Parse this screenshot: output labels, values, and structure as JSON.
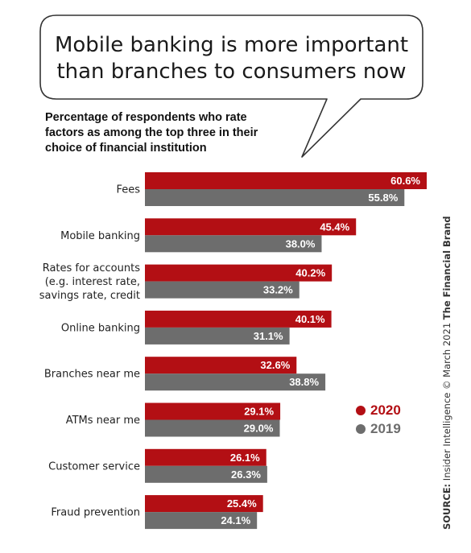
{
  "headline": {
    "line1": "Mobile banking is more important",
    "line2": "than branches to consumers now"
  },
  "subtitle": {
    "line1": "Percentage of respondents who rate",
    "line2": "factors as among the top three in their",
    "line3": "choice of financial institution"
  },
  "chart_data": {
    "type": "bar",
    "orientation": "horizontal",
    "categories": [
      [
        "Fees"
      ],
      [
        "Mobile banking"
      ],
      [
        "Rates for accounts",
        "(e.g. interest rate,",
        "savings rate, credit"
      ],
      [
        "Online banking"
      ],
      [
        "Branches near me"
      ],
      [
        "ATMs near me"
      ],
      [
        "Customer service"
      ],
      [
        "Fraud prevention"
      ]
    ],
    "series": [
      {
        "name": "2020",
        "color": "#b30f14",
        "values": [
          60.6,
          45.4,
          40.2,
          40.1,
          32.6,
          29.1,
          26.1,
          25.4
        ],
        "labels": [
          "60.6%",
          "45.4%",
          "40.2%",
          "40.1%",
          "32.6%",
          "29.1%",
          "26.1%",
          "25.4%"
        ]
      },
      {
        "name": "2019",
        "color": "#6d6d6d",
        "values": [
          55.8,
          38.0,
          33.2,
          31.1,
          38.8,
          29.0,
          26.3,
          24.1
        ],
        "labels": [
          "55.8%",
          "38.0%",
          "33.2%",
          "31.1%",
          "38.8%",
          "29.0%",
          "26.3%",
          "24.1%"
        ]
      }
    ],
    "xlim": [
      0,
      60.6
    ],
    "grid": false,
    "legend_position": "right"
  },
  "legend": {
    "items": [
      {
        "label": "2020",
        "color": "#b30f14"
      },
      {
        "label": "2019",
        "color": "#6d6d6d"
      }
    ]
  },
  "source": {
    "prefix": "SOURCE:",
    "text": " Insider Intelligence © March 2021 ",
    "brand": "The Financial Brand"
  }
}
